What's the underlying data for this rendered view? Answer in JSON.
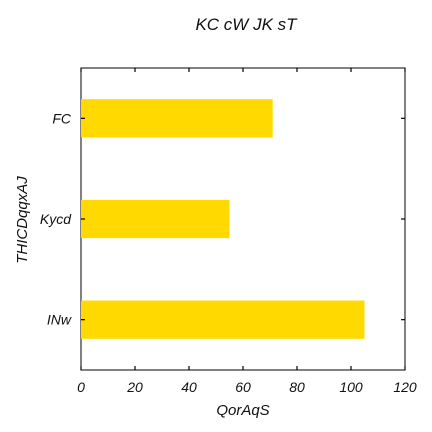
{
  "chart_data": {
    "type": "bar",
    "orientation": "horizontal",
    "title": "KC cW JK sT",
    "xlabel": "QorAqS",
    "ylabel": "THICDqqxAJ",
    "categories": [
      "FC",
      "Kycd",
      "INw"
    ],
    "values": [
      71,
      55,
      105
    ],
    "xlim": [
      0,
      120
    ],
    "xticks": [
      0,
      20,
      40,
      60,
      80,
      100,
      120
    ],
    "grid": false,
    "bar_color": "#FFD900"
  }
}
